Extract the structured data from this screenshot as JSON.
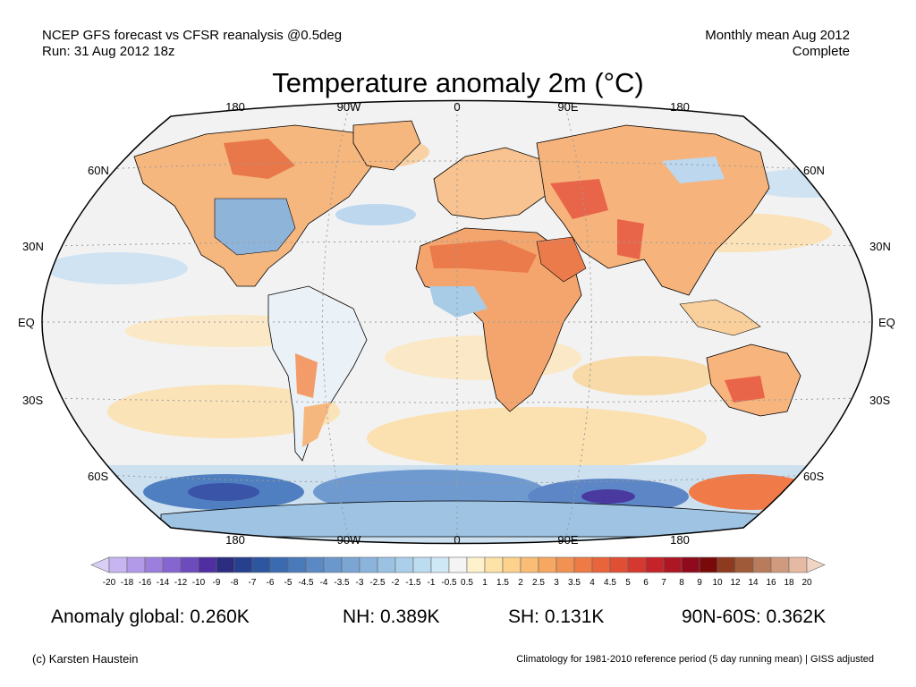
{
  "header": {
    "left_line1": "NCEP GFS forecast vs CFSR reanalysis @0.5deg",
    "left_line2": "Run: 31 Aug 2012 18z",
    "right_line1": "Monthly mean Aug 2012",
    "right_line2": "Complete"
  },
  "title": "Temperature anomaly 2m (°C)",
  "map": {
    "projection": "robinson",
    "lon_labels": [
      "180",
      "90W",
      "0",
      "90E",
      "180"
    ],
    "lat_labels": [
      "60N",
      "30N",
      "EQ",
      "30S",
      "60S"
    ],
    "colors": {
      "ocean_background": "#f2f2f2",
      "land_warm": "#f6b77f",
      "land_hot": "#e9654a",
      "cold": "#9ecae6",
      "very_cold": "#3f6fb3",
      "coastline": "#000000",
      "graticule": "#9a9a9a"
    }
  },
  "colorbar": {
    "labels": [
      "-20",
      "-18",
      "-16",
      "-14",
      "-12",
      "-10",
      "-9",
      "-8",
      "-7",
      "-6",
      "-5",
      "-4.5",
      "-4",
      "-3.5",
      "-3",
      "-2.5",
      "-2",
      "-1.5",
      "-1",
      "-0.5",
      "0.5",
      "1",
      "1.5",
      "2",
      "2.5",
      "3",
      "3.5",
      "4",
      "4.5",
      "5",
      "6",
      "7",
      "8",
      "9",
      "10",
      "12",
      "14",
      "16",
      "18",
      "20"
    ],
    "colors": [
      "#d9cff6",
      "#c6b5f0",
      "#b29ae8",
      "#9c7fdd",
      "#8566d0",
      "#6c4cbd",
      "#4f2ea2",
      "#2c2c80",
      "#263f8f",
      "#2d56a0",
      "#3a6aaf",
      "#4a7aba",
      "#5a89c3",
      "#6b98cc",
      "#7ba6d4",
      "#8bb4dc",
      "#9bc2e3",
      "#abcfea",
      "#bcdcf0",
      "#cfe8f6",
      "#f4f4f4",
      "#fdf2cc",
      "#fde3a8",
      "#fcd28c",
      "#f9bd75",
      "#f6a862",
      "#f29252",
      "#ee7b45",
      "#e8643b",
      "#e04e34",
      "#d4382e",
      "#c4232a",
      "#ad1623",
      "#8f0a1c",
      "#7a0a0a",
      "#8e3a1e",
      "#9f5a3a",
      "#b87c5c",
      "#d09a7e",
      "#e6b9a2",
      "#f2d4c3"
    ]
  },
  "stats": {
    "global": "Anomaly global: 0.260K",
    "nh": "NH: 0.389K",
    "sh": "SH: 0.131K",
    "polar": "90N-60S: 0.362K"
  },
  "footer": {
    "credit": "(c) Karsten Haustein",
    "note": "Climatology for 1981-2010 reference period (5 day running mean) | GISS adjusted"
  }
}
